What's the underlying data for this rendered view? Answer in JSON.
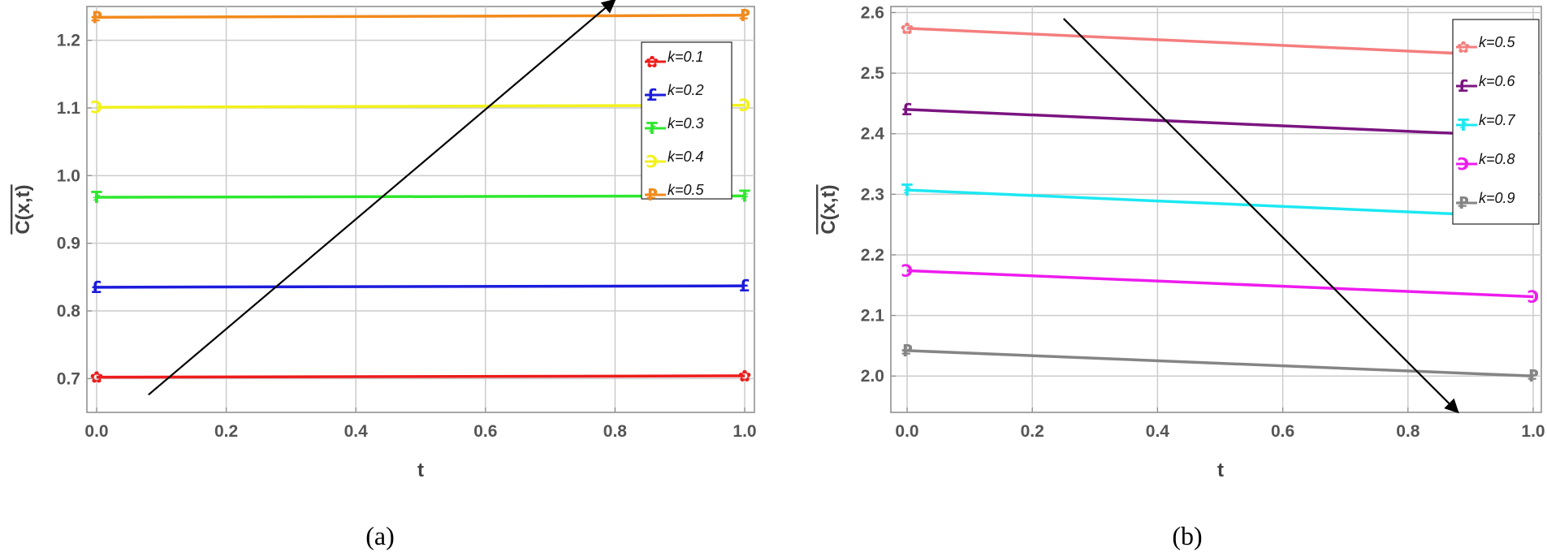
{
  "chart_data": [
    {
      "type": "line",
      "caption": "(a)",
      "xlabel": "t",
      "ylabel": "C(x,t)",
      "ylabel_overline": true,
      "xlim": [
        0.0,
        1.0
      ],
      "ylim": [
        0.65,
        1.25
      ],
      "xticks": [
        "0.0",
        "0.2",
        "0.4",
        "0.6",
        "0.8",
        "1.0"
      ],
      "yticks": [
        "0.7",
        "0.8",
        "0.9",
        "1.0",
        "1.1",
        "1.2"
      ],
      "grid": true,
      "legend_position": "top-right",
      "arrow": {
        "direction": "increasing k",
        "from": [
          0.08,
          0.676
        ],
        "to": [
          0.8,
          1.26
        ]
      },
      "series": [
        {
          "name": "k=0.1",
          "color": "#ee1c1c",
          "marker": "✿",
          "x": [
            0.0,
            1.0
          ],
          "y": [
            0.702,
            0.704
          ]
        },
        {
          "name": "k=0.2",
          "color": "#1c1cdd",
          "marker": "£",
          "x": [
            0.0,
            1.0
          ],
          "y": [
            0.835,
            0.837
          ]
        },
        {
          "name": "k=0.3",
          "color": "#2ee82e",
          "marker": "₮",
          "x": [
            0.0,
            1.0
          ],
          "y": [
            0.968,
            0.97
          ]
        },
        {
          "name": "k=0.4",
          "color": "#f2f21c",
          "marker": "Ͻ",
          "x": [
            0.0,
            1.0
          ],
          "y": [
            1.101,
            1.104
          ]
        },
        {
          "name": "k=0.5",
          "color": "#f28a1c",
          "marker": "₽",
          "x": [
            0.0,
            1.0
          ],
          "y": [
            1.234,
            1.237
          ]
        }
      ]
    },
    {
      "type": "line",
      "caption": "(b)",
      "xlabel": "t",
      "ylabel": "C(x,t)",
      "ylabel_overline": true,
      "xlim": [
        0.0,
        1.0
      ],
      "ylim": [
        1.94,
        2.61
      ],
      "xticks": [
        "0.0",
        "0.2",
        "0.4",
        "0.6",
        "0.8",
        "1.0"
      ],
      "yticks": [
        "2.0",
        "2.1",
        "2.2",
        "2.3",
        "2.4",
        "2.5",
        "2.6"
      ],
      "grid": true,
      "legend_position": "top-right",
      "arrow": {
        "direction": "increasing k",
        "from": [
          0.25,
          2.59
        ],
        "to": [
          0.88,
          1.94
        ]
      },
      "series": [
        {
          "name": "k=0.5",
          "color": "#f47e7e",
          "marker": "✿",
          "x": [
            0.0,
            1.0
          ],
          "y": [
            2.574,
            2.527
          ]
        },
        {
          "name": "k=0.6",
          "color": "#7b1480",
          "marker": "£",
          "x": [
            0.0,
            1.0
          ],
          "y": [
            2.44,
            2.395
          ]
        },
        {
          "name": "k=0.7",
          "color": "#1ce8f2",
          "marker": "₮",
          "x": [
            0.0,
            1.0
          ],
          "y": [
            2.307,
            2.262
          ]
        },
        {
          "name": "k=0.8",
          "color": "#ee1cee",
          "marker": "Ͻ",
          "x": [
            0.0,
            1.0
          ],
          "y": [
            2.174,
            2.131
          ]
        },
        {
          "name": "k=0.9",
          "color": "#858585",
          "marker": "₽",
          "x": [
            0.0,
            1.0
          ],
          "y": [
            2.042,
            2.0
          ]
        }
      ]
    }
  ]
}
